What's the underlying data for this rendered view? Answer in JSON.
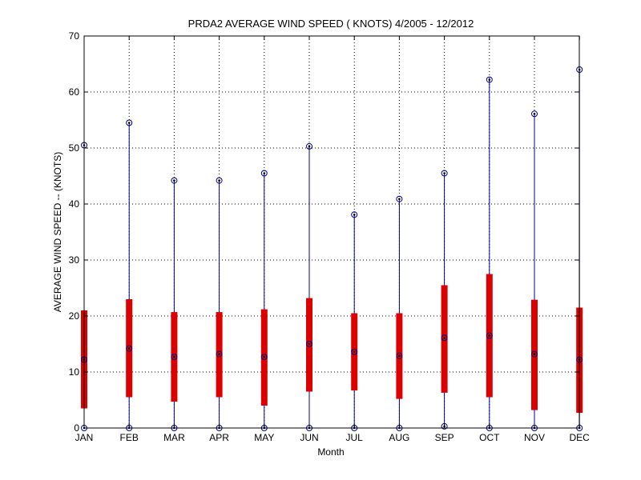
{
  "chart_data": {
    "type": "box",
    "title": "PRDA2  AVERAGE WIND SPEED ( KNOTS) 4/2005 - 12/2012",
    "xlabel": "Month",
    "ylabel": "AVERAGE WIND SPEED -- (KNOTS)",
    "ylim": [
      0,
      70
    ],
    "yticks": [
      "0",
      "10",
      "20",
      "30",
      "40",
      "50",
      "60",
      "70"
    ],
    "grid": true,
    "categories": [
      "JAN",
      "FEB",
      "MAR",
      "APR",
      "MAY",
      "JUN",
      "JUL",
      "AUG",
      "SEP",
      "OCT",
      "NOV",
      "DEC"
    ],
    "series": [
      {
        "min": 0,
        "q1": 3.5,
        "median": 12.2,
        "q3": 21.0,
        "max": 50.5
      },
      {
        "min": 0,
        "q1": 5.5,
        "median": 14.2,
        "q3": 23.0,
        "max": 54.5
      },
      {
        "min": 0,
        "q1": 4.7,
        "median": 12.7,
        "q3": 20.7,
        "max": 44.2
      },
      {
        "min": 0,
        "q1": 5.5,
        "median": 13.2,
        "q3": 20.7,
        "max": 44.2
      },
      {
        "min": 0,
        "q1": 4.0,
        "median": 12.7,
        "q3": 21.2,
        "max": 45.5
      },
      {
        "min": 0,
        "q1": 6.5,
        "median": 15.0,
        "q3": 23.2,
        "max": 50.3
      },
      {
        "min": 0,
        "q1": 6.7,
        "median": 13.6,
        "q3": 20.5,
        "max": 38.1
      },
      {
        "min": 0,
        "q1": 5.2,
        "median": 12.9,
        "q3": 20.5,
        "max": 40.9
      },
      {
        "min": 0.3,
        "q1": 6.3,
        "median": 16.1,
        "q3": 25.5,
        "max": 45.5
      },
      {
        "min": 0,
        "q1": 5.5,
        "median": 16.5,
        "q3": 27.5,
        "max": 62.2
      },
      {
        "min": 0,
        "q1": 3.2,
        "median": 13.2,
        "q3": 22.9,
        "max": 56.1
      },
      {
        "min": 0,
        "q1": 2.7,
        "median": 12.2,
        "q3": 21.5,
        "max": 64.0
      }
    ],
    "colors": {
      "whisker": "#00008b",
      "box": "#dd0000",
      "marker": "#000000",
      "grid": "#000000"
    }
  }
}
